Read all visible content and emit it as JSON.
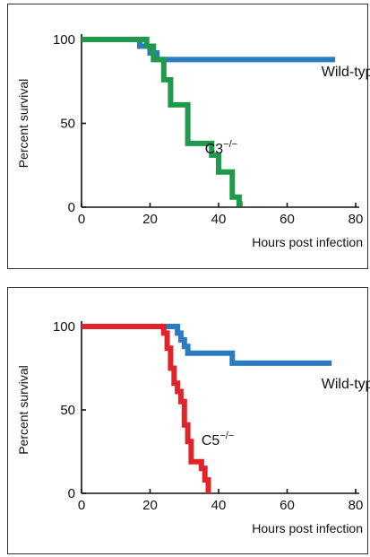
{
  "chart_data": [
    {
      "type": "line",
      "xlabel": "Hours post infection",
      "ylabel": "Percent survival",
      "xlim": [
        0,
        80
      ],
      "ylim": [
        0,
        100
      ],
      "xticks": [
        "0",
        "20",
        "40",
        "60",
        "80"
      ],
      "yticks": [
        "0",
        "50",
        "100"
      ],
      "grid": false,
      "series": [
        {
          "label": "Wild-type",
          "color": "#2b7bc0",
          "points": [
            [
              0,
              100
            ],
            [
              17,
              100
            ],
            [
              17,
              96
            ],
            [
              20,
              96
            ],
            [
              20,
              92
            ],
            [
              22,
              92
            ],
            [
              22,
              88
            ],
            [
              74,
              88
            ]
          ],
          "label_at": [
            70,
            78
          ]
        },
        {
          "label": "C3",
          "label_sup": "−/−",
          "color": "#1f9a4a",
          "points": [
            [
              0,
              100
            ],
            [
              19,
              100
            ],
            [
              19,
              96
            ],
            [
              21,
              96
            ],
            [
              21,
              88
            ],
            [
              24,
              88
            ],
            [
              24,
              76
            ],
            [
              26,
              76
            ],
            [
              26,
              61
            ],
            [
              31,
              61
            ],
            [
              31,
              38
            ],
            [
              38,
              38
            ],
            [
              38,
              31
            ],
            [
              40,
              31
            ],
            [
              40,
              21
            ],
            [
              44,
              21
            ],
            [
              44,
              6
            ],
            [
              46,
              6
            ],
            [
              46,
              2
            ],
            [
              47,
              2
            ]
          ],
          "label_at": [
            36,
            32
          ]
        }
      ]
    },
    {
      "type": "line",
      "xlabel": "Hours post infection",
      "ylabel": "Percent survival",
      "xlim": [
        0,
        80
      ],
      "ylim": [
        0,
        100
      ],
      "xticks": [
        "0",
        "20",
        "40",
        "60",
        "80"
      ],
      "yticks": [
        "0",
        "50",
        "100"
      ],
      "grid": false,
      "series": [
        {
          "label": "Wild-type",
          "color": "#2b7bc0",
          "points": [
            [
              0,
              100
            ],
            [
              28,
              100
            ],
            [
              28,
              96
            ],
            [
              29,
              96
            ],
            [
              29,
              92
            ],
            [
              30,
              92
            ],
            [
              30,
              88
            ],
            [
              31,
              88
            ],
            [
              31,
              84
            ],
            [
              44,
              84
            ],
            [
              44,
              78
            ],
            [
              73,
              78
            ]
          ],
          "label_at": [
            70,
            63
          ]
        },
        {
          "label": "C5",
          "label_sup": "−/−",
          "color": "#e0242a",
          "points": [
            [
              0,
              100
            ],
            [
              24,
              100
            ],
            [
              24,
              96
            ],
            [
              25,
              96
            ],
            [
              25,
              87
            ],
            [
              26,
              87
            ],
            [
              26,
              75
            ],
            [
              27,
              75
            ],
            [
              27,
              66
            ],
            [
              28,
              66
            ],
            [
              28,
              61
            ],
            [
              29,
              61
            ],
            [
              29,
              55
            ],
            [
              30,
              55
            ],
            [
              30,
              41
            ],
            [
              31,
              41
            ],
            [
              31,
              31
            ],
            [
              32,
              31
            ],
            [
              32,
              19
            ],
            [
              35,
              19
            ],
            [
              35,
              15
            ],
            [
              36,
              15
            ],
            [
              36,
              8
            ],
            [
              37,
              8
            ],
            [
              37,
              0
            ]
          ],
          "label_at": [
            35,
            29
          ]
        }
      ]
    }
  ]
}
